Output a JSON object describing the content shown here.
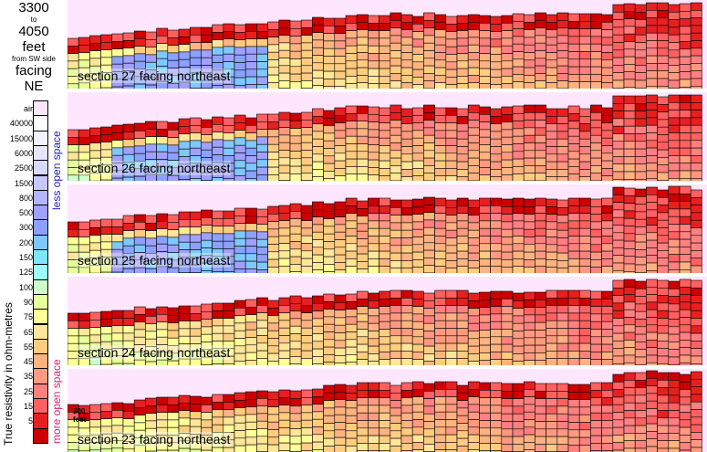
{
  "header": {
    "from": "3300",
    "to_word": "to",
    "to": "4050",
    "unit": "feet",
    "side_note": "from SW side",
    "facing_word": "facing",
    "direction": "NE"
  },
  "legend": {
    "title": "True resistivity in ohm-metres",
    "less_open": "less open space",
    "more_open": "more open space",
    "less_color": "#2222cc",
    "more_color": "#e0207a",
    "levels": [
      {
        "label": "air",
        "color": "#ffe6ff"
      },
      {
        "label": "40000",
        "color": "#ffffff"
      },
      {
        "label": "15000",
        "color": "#f2f2ff"
      },
      {
        "label": "6000",
        "color": "#e6e6ff"
      },
      {
        "label": "2500",
        "color": "#d9d9ff"
      },
      {
        "label": "1500",
        "color": "#c8c8ff"
      },
      {
        "label": "800",
        "color": "#b4b4ff"
      },
      {
        "label": "500",
        "color": "#a0a0ff"
      },
      {
        "label": "300",
        "color": "#8ca0ff"
      },
      {
        "label": "200",
        "color": "#7fc8ff"
      },
      {
        "label": "150",
        "color": "#7fe6ff"
      },
      {
        "label": "125",
        "color": "#99ffff"
      },
      {
        "label": "100",
        "color": "#ccffcc"
      },
      {
        "label": "90",
        "color": "#e6ff99"
      },
      {
        "label": "75",
        "color": "#ffff99"
      },
      {
        "label": "65",
        "color": "#ffe699"
      },
      {
        "label": "55",
        "color": "#ffcc80"
      },
      {
        "label": "45",
        "color": "#ffb380"
      },
      {
        "label": "35",
        "color": "#ff9980"
      },
      {
        "label": "25",
        "color": "#ff8080"
      },
      {
        "label": "15",
        "color": "#ff6060"
      },
      {
        "label": "5",
        "color": "#e62020"
      },
      {
        "label": "",
        "color": "#cc0000"
      }
    ]
  },
  "scale_bar": {
    "value": "300",
    "unit": "feet"
  },
  "chart_data": [
    {
      "type": "heatmap",
      "title": "section 27 facing northeast"
    },
    {
      "type": "heatmap",
      "title": "section 26 facing northeast"
    },
    {
      "type": "heatmap",
      "title": "section 25 facing northeast"
    },
    {
      "type": "heatmap",
      "title": "section 24 facing northeast"
    },
    {
      "type": "heatmap",
      "title": "section 23 facing northeast"
    }
  ]
}
